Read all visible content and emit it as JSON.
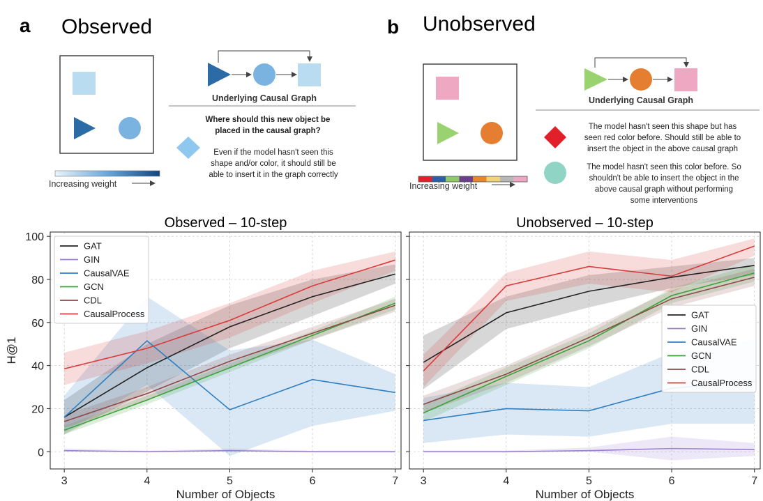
{
  "panel_a": {
    "letter": "a",
    "title": "Observed",
    "graph_caption": "Underlying Causal Graph",
    "question_line1": "Where should this new object be",
    "question_line2": "placed in the causal graph?",
    "note_line1": "Even if the model hasn't seen this",
    "note_line2": "shape and/or color, it should still be",
    "note_line3": "able to insert it in the graph correctly",
    "weight_label": "Increasing weight",
    "colors": {
      "light_blue": "#b9dcf0",
      "mid_blue": "#7bb3e0",
      "dark_blue": "#2c6ba6",
      "diamond": "#8ec8ee"
    }
  },
  "panel_b": {
    "letter": "b",
    "title": "Unobserved",
    "graph_caption": "Underlying Causal Graph",
    "note1_line1": "The model hasn't seen this shape but has",
    "note1_line2": "seen red color before. Should still be able to",
    "note1_line3": "insert the object in the above causal graph",
    "note2_line1": "The model hasn't seen this color before. So",
    "note2_line2": "shouldn't  be able to insert the object in the",
    "note2_line3": "above causal graph without performing",
    "note2_line4": "some interventions",
    "weight_label": "Increasing weight",
    "palette": [
      "#e2202a",
      "#2b5fa8",
      "#8fca6a",
      "#6b3f8e",
      "#e8862d",
      "#f2d27a",
      "#b8b8b8",
      "#efa7c6"
    ],
    "colors": {
      "pink": "#efa8c1",
      "green": "#99d26e",
      "orange": "#e57e30",
      "red_diamond": "#e2202a",
      "teal": "#8fd4c4"
    }
  },
  "chart_data": [
    {
      "type": "line",
      "title": "Observed – 10-step",
      "xlabel": "Number of Objects",
      "ylabel": "H@1",
      "x": [
        3,
        4,
        5,
        6,
        7
      ],
      "xlim": [
        2.83,
        7.07
      ],
      "ylim": [
        -8,
        102
      ],
      "yticks": [
        0,
        20,
        40,
        60,
        80,
        100
      ],
      "grid": true,
      "legend": "top-left",
      "series": [
        {
          "name": "GAT",
          "color": "#222222",
          "values": [
            16,
            39,
            58,
            72,
            82.5
          ],
          "lower": [
            8,
            28,
            48,
            63,
            78
          ],
          "upper": [
            24,
            50,
            68,
            80,
            87
          ]
        },
        {
          "name": "GIN",
          "color": "#9b7fd0",
          "values": [
            0.5,
            0,
            0.5,
            0,
            0
          ],
          "lower": [
            0,
            0,
            0,
            0,
            0
          ],
          "upper": [
            1.5,
            0.5,
            1.5,
            0.5,
            0.5
          ]
        },
        {
          "name": "CausalVAE",
          "color": "#2f7ec0",
          "values": [
            16,
            51.5,
            19.5,
            33.5,
            27.5
          ],
          "lower": [
            9,
            31,
            -2,
            12,
            19
          ],
          "upper": [
            26,
            72,
            47,
            52,
            36
          ]
        },
        {
          "name": "GCN",
          "color": "#3ca33a",
          "values": [
            10,
            24,
            39,
            54,
            69
          ],
          "lower": [
            8,
            22,
            37,
            52,
            66
          ],
          "upper": [
            12,
            26,
            41,
            56,
            72
          ]
        },
        {
          "name": "CDL",
          "color": "#8b4a48",
          "values": [
            14,
            27,
            42,
            55,
            68
          ],
          "lower": [
            11,
            24,
            39,
            52,
            65
          ],
          "upper": [
            17,
            30,
            45,
            58,
            71
          ]
        },
        {
          "name": "CausalProcess",
          "color": "#d93a3a",
          "values": [
            38.5,
            48,
            61,
            77,
            89
          ],
          "lower": [
            31,
            41,
            53,
            69,
            84
          ],
          "upper": [
            46,
            56,
            69,
            84,
            93
          ]
        }
      ]
    },
    {
      "type": "line",
      "title": "Unobserved – 10-step",
      "xlabel": "Number of Objects",
      "ylabel": "",
      "x": [
        3,
        4,
        5,
        6,
        7
      ],
      "xlim": [
        2.83,
        7.07
      ],
      "ylim": [
        -8,
        102
      ],
      "yticks": [
        0,
        20,
        40,
        60,
        80,
        100
      ],
      "grid": true,
      "legend": "right",
      "series": [
        {
          "name": "GAT",
          "color": "#222222",
          "values": [
            41.5,
            64.5,
            74.5,
            81,
            86.5
          ],
          "lower": [
            29,
            57,
            67,
            76,
            82
          ],
          "upper": [
            54,
            72,
            82,
            86,
            90
          ]
        },
        {
          "name": "GIN",
          "color": "#9b7fd0",
          "values": [
            0,
            0,
            0.5,
            1.5,
            1
          ],
          "lower": [
            0,
            0,
            0,
            -4,
            -2
          ],
          "upper": [
            0.5,
            0.5,
            2,
            7,
            4
          ]
        },
        {
          "name": "CausalVAE",
          "color": "#2f7ec0",
          "values": [
            14.5,
            20,
            19,
            29.5,
            32.5
          ],
          "lower": [
            4,
            8,
            7,
            13,
            13
          ],
          "upper": [
            25,
            32,
            30,
            46,
            52
          ]
        },
        {
          "name": "GCN",
          "color": "#3ca33a",
          "values": [
            18,
            35,
            51.5,
            72.5,
            83
          ],
          "lower": [
            14,
            31,
            48,
            69,
            79
          ],
          "upper": [
            22,
            39,
            55,
            76,
            87
          ]
        },
        {
          "name": "CDL",
          "color": "#8b4a48",
          "values": [
            22,
            36,
            53,
            71,
            81
          ],
          "lower": [
            18,
            32,
            49,
            67,
            77
          ],
          "upper": [
            26,
            40,
            57,
            75,
            85
          ]
        },
        {
          "name": "CausalProcess",
          "color": "#d93a3a",
          "values": [
            37.5,
            77,
            86,
            81.5,
            95.5
          ],
          "lower": [
            30,
            70,
            78,
            74,
            91
          ],
          "upper": [
            45,
            83,
            93,
            89,
            99
          ]
        }
      ]
    }
  ]
}
